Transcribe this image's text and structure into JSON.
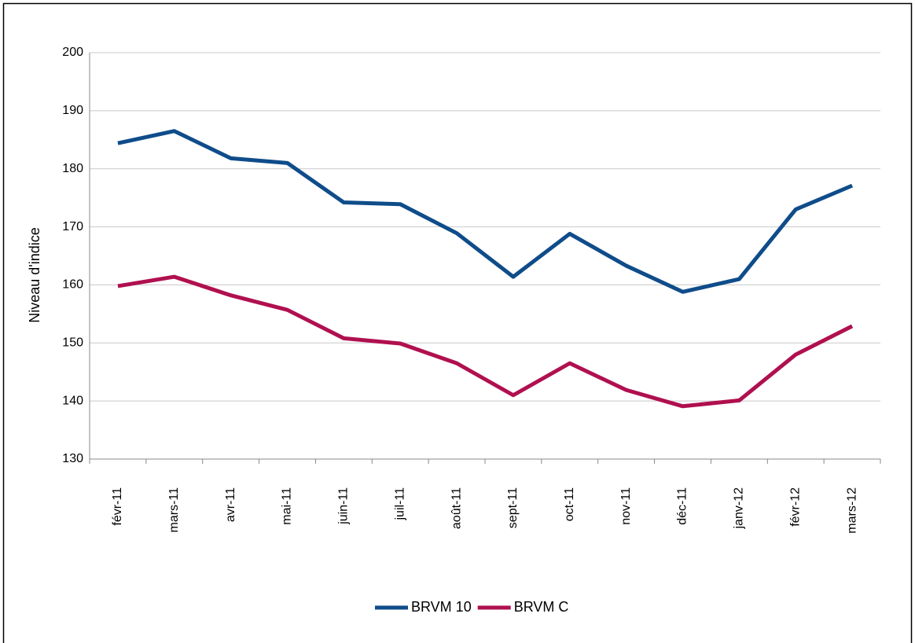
{
  "chart_data": {
    "type": "line",
    "y_label": "Niveau d'indice",
    "categories": [
      "févr-11",
      "mars-11",
      "avr-11",
      "mai-11",
      "juin-11",
      "juil-11",
      "août-11",
      "sept-11",
      "oct-11",
      "nov-11",
      "déc-11",
      "janv-12",
      "févr-12",
      "mars-12"
    ],
    "series": [
      {
        "name": "BRVM 10",
        "color": "#0f4c8a",
        "values": [
          184.4,
          186.5,
          181.8,
          181.0,
          174.2,
          173.9,
          168.9,
          161.4,
          168.8,
          163.3,
          158.8,
          161.0,
          173.0,
          177.1
        ]
      },
      {
        "name": "BRVM C",
        "color": "#b0104f",
        "values": [
          159.8,
          161.4,
          158.2,
          155.7,
          150.8,
          149.9,
          146.5,
          141.0,
          146.5,
          141.9,
          139.1,
          140.1,
          148.0,
          152.9
        ]
      }
    ],
    "ylim": [
      130,
      200
    ],
    "yticks": [
      130,
      140,
      150,
      160,
      170,
      180,
      190,
      200
    ],
    "grid": true,
    "legend": "bottom"
  }
}
